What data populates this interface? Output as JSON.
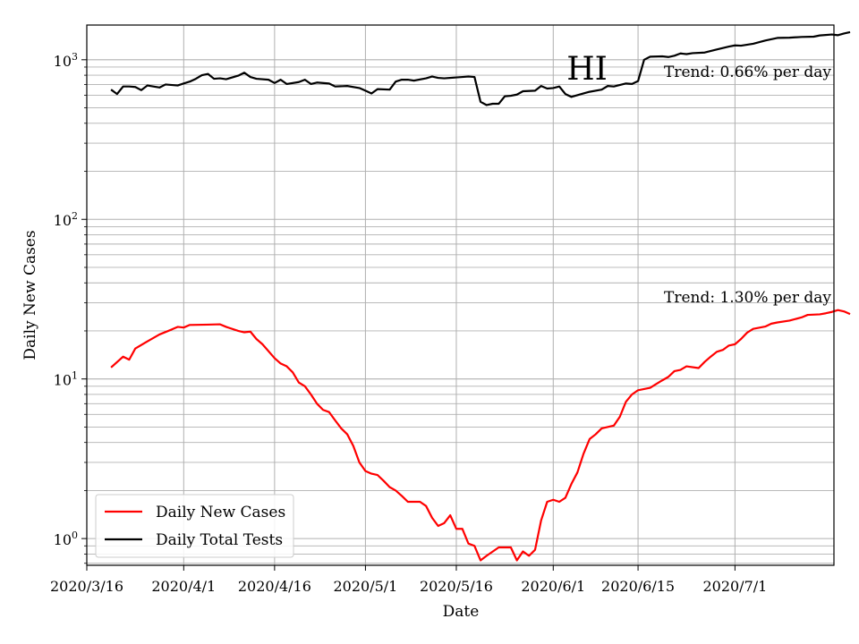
{
  "chart_data": {
    "type": "line",
    "title": "",
    "xlabel": "Date",
    "ylabel": "Daily New Cases",
    "y_scale": "log",
    "ylim": [
      0.68,
      1650
    ],
    "xlim": [
      "2020-03-16",
      "2020-07-17"
    ],
    "grid": true,
    "legend_position": "lower-left",
    "x_ticks": [
      "2020-03-16",
      "2020-04-01",
      "2020-04-16",
      "2020-05-01",
      "2020-05-16",
      "2020-06-01",
      "2020-06-15",
      "2020-07-01"
    ],
    "x_tick_labels": [
      "2020/3/16",
      "2020/4/1",
      "2020/4/16",
      "2020/5/1",
      "2020/5/16",
      "2020/6/1",
      "2020/6/15",
      "2020/7/1"
    ],
    "y_tick_labels": [
      {
        "value": 1,
        "base": "10",
        "exp": "0"
      },
      {
        "value": 10,
        "base": "10",
        "exp": "1"
      },
      {
        "value": 100,
        "base": "10",
        "exp": "2"
      },
      {
        "value": 1000,
        "base": "10",
        "exp": "3"
      }
    ],
    "annotations": [
      {
        "text": "HI",
        "kind": "state"
      },
      {
        "text": "Trend: 0.66% per day",
        "kind": "trend",
        "series": "Daily Total Tests"
      },
      {
        "text": "Trend: 1.30% per day",
        "kind": "trend",
        "series": "Daily New Cases"
      }
    ],
    "series": [
      {
        "name": "Daily New Cases",
        "color": "#ff0000",
        "points": [
          [
            "2020-03-20",
            11.8
          ],
          [
            "2020-03-22",
            13.8
          ],
          [
            "2020-03-23",
            13.2
          ],
          [
            "2020-03-24",
            15.5
          ],
          [
            "2020-03-26",
            17.2
          ],
          [
            "2020-03-28",
            19.0
          ],
          [
            "2020-03-30",
            20.4
          ],
          [
            "2020-03-31",
            21.2
          ],
          [
            "2020-04-01",
            21.0
          ],
          [
            "2020-04-02",
            21.8
          ],
          [
            "2020-04-05",
            21.9
          ],
          [
            "2020-04-07",
            22.0
          ],
          [
            "2020-04-08",
            21.2
          ],
          [
            "2020-04-10",
            20.0
          ],
          [
            "2020-04-11",
            19.6
          ],
          [
            "2020-04-12",
            19.8
          ],
          [
            "2020-04-13",
            17.8
          ],
          [
            "2020-04-14",
            16.5
          ],
          [
            "2020-04-16",
            13.5
          ],
          [
            "2020-04-17",
            12.5
          ],
          [
            "2020-04-18",
            12.0
          ],
          [
            "2020-04-19",
            11.0
          ],
          [
            "2020-04-20",
            9.5
          ],
          [
            "2020-04-21",
            9.0
          ],
          [
            "2020-04-22",
            8.0
          ],
          [
            "2020-04-23",
            7.0
          ],
          [
            "2020-04-24",
            6.4
          ],
          [
            "2020-04-25",
            6.2
          ],
          [
            "2020-04-26",
            5.5
          ],
          [
            "2020-04-27",
            4.9
          ],
          [
            "2020-04-28",
            4.5
          ],
          [
            "2020-04-29",
            3.8
          ],
          [
            "2020-04-30",
            3.0
          ],
          [
            "2020-05-01",
            2.65
          ],
          [
            "2020-05-02",
            2.55
          ],
          [
            "2020-05-03",
            2.5
          ],
          [
            "2020-05-04",
            2.3
          ],
          [
            "2020-05-05",
            2.1
          ],
          [
            "2020-05-06",
            2.0
          ],
          [
            "2020-05-07",
            1.85
          ],
          [
            "2020-05-08",
            1.7
          ],
          [
            "2020-05-10",
            1.7
          ],
          [
            "2020-05-11",
            1.6
          ],
          [
            "2020-05-12",
            1.35
          ],
          [
            "2020-05-13",
            1.2
          ],
          [
            "2020-05-14",
            1.25
          ],
          [
            "2020-05-15",
            1.4
          ],
          [
            "2020-05-16",
            1.15
          ],
          [
            "2020-05-17",
            1.15
          ],
          [
            "2020-05-18",
            0.93
          ],
          [
            "2020-05-19",
            0.9
          ],
          [
            "2020-05-20",
            0.73
          ],
          [
            "2020-05-21",
            0.78
          ],
          [
            "2020-05-23",
            0.88
          ],
          [
            "2020-05-25",
            0.88
          ],
          [
            "2020-05-26",
            0.73
          ],
          [
            "2020-05-27",
            0.83
          ],
          [
            "2020-05-28",
            0.78
          ],
          [
            "2020-05-29",
            0.85
          ],
          [
            "2020-05-30",
            1.3
          ],
          [
            "2020-05-31",
            1.7
          ],
          [
            "2020-06-01",
            1.75
          ],
          [
            "2020-06-02",
            1.7
          ],
          [
            "2020-06-03",
            1.8
          ],
          [
            "2020-06-04",
            2.2
          ],
          [
            "2020-06-05",
            2.6
          ],
          [
            "2020-06-06",
            3.4
          ],
          [
            "2020-06-07",
            4.2
          ],
          [
            "2020-06-08",
            4.5
          ],
          [
            "2020-06-09",
            4.9
          ],
          [
            "2020-06-11",
            5.1
          ],
          [
            "2020-06-12",
            5.8
          ],
          [
            "2020-06-13",
            7.2
          ],
          [
            "2020-06-14",
            8.0
          ],
          [
            "2020-06-15",
            8.5
          ],
          [
            "2020-06-17",
            8.8
          ],
          [
            "2020-06-18",
            9.3
          ],
          [
            "2020-06-19",
            9.8
          ],
          [
            "2020-06-20",
            10.3
          ],
          [
            "2020-06-21",
            11.2
          ],
          [
            "2020-06-22",
            11.4
          ],
          [
            "2020-06-23",
            12.0
          ],
          [
            "2020-06-25",
            11.7
          ],
          [
            "2020-06-26",
            12.8
          ],
          [
            "2020-06-27",
            13.8
          ],
          [
            "2020-06-28",
            14.8
          ],
          [
            "2020-06-29",
            15.2
          ],
          [
            "2020-06-30",
            16.2
          ],
          [
            "2020-07-01",
            16.5
          ],
          [
            "2020-07-02",
            17.8
          ],
          [
            "2020-07-03",
            19.5
          ],
          [
            "2020-07-04",
            20.6
          ],
          [
            "2020-07-06",
            21.3
          ],
          [
            "2020-07-07",
            22.2
          ],
          [
            "2020-07-08",
            22.6
          ],
          [
            "2020-07-10",
            23.2
          ],
          [
            "2020-07-12",
            24.3
          ],
          [
            "2020-07-13",
            25.2
          ],
          [
            "2020-07-15",
            25.4
          ],
          [
            "2020-07-16",
            25.8
          ],
          [
            "2020-07-17",
            26.3
          ],
          [
            "2020-07-18",
            27.0
          ],
          [
            "2020-07-19",
            26.5
          ],
          [
            "2020-07-20",
            25.5
          ]
        ]
      },
      {
        "name": "Daily Total Tests",
        "color": "#000000",
        "points": [
          [
            "2020-03-20",
            650
          ],
          [
            "2020-03-21",
            610
          ],
          [
            "2020-03-22",
            680
          ],
          [
            "2020-03-23",
            680
          ],
          [
            "2020-03-24",
            675
          ],
          [
            "2020-03-25",
            645
          ],
          [
            "2020-03-26",
            690
          ],
          [
            "2020-03-27",
            680
          ],
          [
            "2020-03-28",
            670
          ],
          [
            "2020-03-29",
            700
          ],
          [
            "2020-03-31",
            690
          ],
          [
            "2020-04-01",
            710
          ],
          [
            "2020-04-02",
            730
          ],
          [
            "2020-04-03",
            760
          ],
          [
            "2020-04-04",
            800
          ],
          [
            "2020-04-05",
            815
          ],
          [
            "2020-04-06",
            760
          ],
          [
            "2020-04-07",
            765
          ],
          [
            "2020-04-08",
            755
          ],
          [
            "2020-04-10",
            795
          ],
          [
            "2020-04-11",
            830
          ],
          [
            "2020-04-12",
            780
          ],
          [
            "2020-04-13",
            760
          ],
          [
            "2020-04-15",
            750
          ],
          [
            "2020-04-16",
            715
          ],
          [
            "2020-04-17",
            750
          ],
          [
            "2020-04-18",
            705
          ],
          [
            "2020-04-20",
            725
          ],
          [
            "2020-04-21",
            750
          ],
          [
            "2020-04-22",
            705
          ],
          [
            "2020-04-23",
            720
          ],
          [
            "2020-04-25",
            710
          ],
          [
            "2020-04-26",
            680
          ],
          [
            "2020-04-28",
            685
          ],
          [
            "2020-04-30",
            665
          ],
          [
            "2020-05-01",
            640
          ],
          [
            "2020-05-02",
            615
          ],
          [
            "2020-05-03",
            655
          ],
          [
            "2020-05-05",
            650
          ],
          [
            "2020-05-06",
            730
          ],
          [
            "2020-05-07",
            750
          ],
          [
            "2020-05-08",
            750
          ],
          [
            "2020-05-09",
            740
          ],
          [
            "2020-05-11",
            765
          ],
          [
            "2020-05-12",
            785
          ],
          [
            "2020-05-13",
            770
          ],
          [
            "2020-05-14",
            765
          ],
          [
            "2020-05-16",
            775
          ],
          [
            "2020-05-17",
            780
          ],
          [
            "2020-05-18",
            785
          ],
          [
            "2020-05-19",
            780
          ],
          [
            "2020-05-20",
            545
          ],
          [
            "2020-05-21",
            520
          ],
          [
            "2020-05-22",
            530
          ],
          [
            "2020-05-23",
            530
          ],
          [
            "2020-05-24",
            590
          ],
          [
            "2020-05-25",
            595
          ],
          [
            "2020-05-26",
            605
          ],
          [
            "2020-05-27",
            635
          ],
          [
            "2020-05-29",
            640
          ],
          [
            "2020-05-30",
            685
          ],
          [
            "2020-05-31",
            660
          ],
          [
            "2020-06-01",
            665
          ],
          [
            "2020-06-02",
            680
          ],
          [
            "2020-06-03",
            610
          ],
          [
            "2020-06-04",
            585
          ],
          [
            "2020-06-06",
            615
          ],
          [
            "2020-06-07",
            630
          ],
          [
            "2020-06-09",
            650
          ],
          [
            "2020-06-10",
            685
          ],
          [
            "2020-06-11",
            680
          ],
          [
            "2020-06-13",
            710
          ],
          [
            "2020-06-14",
            705
          ],
          [
            "2020-06-15",
            735
          ],
          [
            "2020-06-16",
            1000
          ],
          [
            "2020-06-17",
            1045
          ],
          [
            "2020-06-19",
            1050
          ],
          [
            "2020-06-20",
            1040
          ],
          [
            "2020-06-21",
            1060
          ],
          [
            "2020-06-22",
            1095
          ],
          [
            "2020-06-23",
            1085
          ],
          [
            "2020-06-24",
            1100
          ],
          [
            "2020-06-26",
            1110
          ],
          [
            "2020-06-28",
            1160
          ],
          [
            "2020-06-30",
            1210
          ],
          [
            "2020-07-01",
            1230
          ],
          [
            "2020-07-02",
            1225
          ],
          [
            "2020-07-04",
            1260
          ],
          [
            "2020-07-06",
            1320
          ],
          [
            "2020-07-08",
            1370
          ],
          [
            "2020-07-10",
            1375
          ],
          [
            "2020-07-12",
            1390
          ],
          [
            "2020-07-14",
            1395
          ],
          [
            "2020-07-15",
            1420
          ],
          [
            "2020-07-17",
            1440
          ],
          [
            "2020-07-18",
            1425
          ],
          [
            "2020-07-19",
            1460
          ],
          [
            "2020-07-20",
            1490
          ]
        ]
      }
    ]
  }
}
